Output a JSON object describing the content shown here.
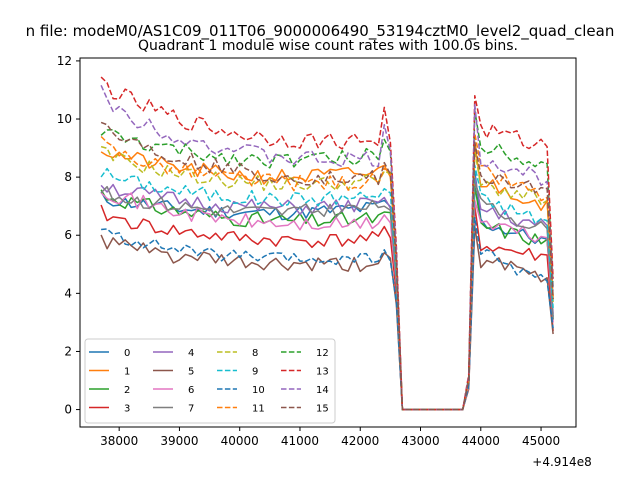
{
  "figure": {
    "suptitle": "n file: modeM0/AS1C09_011T06_9000006490_53194cztM0_level2_quad_clean",
    "title": "Quadrant 1 module wise count rates with 100.0s bins.",
    "offset_label": "+4.914e8"
  },
  "chart_data": {
    "type": "line",
    "title": "Quadrant 1 module wise count rates with 100.0s bins.",
    "xlabel": "",
    "ylabel": "",
    "xlim": [
      37350,
      45580
    ],
    "ylim": [
      -0.6,
      12.1
    ],
    "x_offset": 491400000,
    "x_ticks": [
      38000,
      39000,
      40000,
      41000,
      42000,
      43000,
      44000,
      45000
    ],
    "x_tick_labels": [
      "38000",
      "39000",
      "40000",
      "41000",
      "42000",
      "43000",
      "44000",
      "45000"
    ],
    "y_ticks": [
      0,
      2,
      4,
      6,
      8,
      10,
      12
    ],
    "y_tick_labels": [
      "0",
      "2",
      "4",
      "6",
      "8",
      "10",
      "12"
    ],
    "grid": false,
    "legend": {
      "placement": "lower-left",
      "columns": 4
    },
    "segments": {
      "pre": {
        "start": 37700,
        "end": 42500,
        "step": 100
      },
      "drop": [
        42600,
        42700
      ],
      "zero_end": 43700,
      "rise": [
        43800,
        43900
      ],
      "post": {
        "start": 43900,
        "end": 45200,
        "step": 100
      }
    },
    "series": [
      {
        "name": "0",
        "color": "#1f77b4",
        "dash": "solid",
        "pre_start": 7.3,
        "pre_end": 7.0,
        "spike": 7.2,
        "drop": [
          4.4,
          0
        ],
        "rise": [
          0.9,
          8.2
        ],
        "post_start": 6.5,
        "post_end": 5.7,
        "last": 3.2,
        "noise": 0.25,
        "seed": 11
      },
      {
        "name": "1",
        "color": "#ff7f0e",
        "dash": "solid",
        "pre_start": 9.0,
        "pre_end": 8.2,
        "spike": 8.4,
        "drop": [
          5.0,
          0
        ],
        "rise": [
          1.0,
          9.2
        ],
        "post_start": 7.9,
        "post_end": 7.0,
        "last": 3.8,
        "noise": 0.28,
        "seed": 21
      },
      {
        "name": "2",
        "color": "#2ca02c",
        "dash": "solid",
        "pre_start": 7.5,
        "pre_end": 6.6,
        "spike": 6.8,
        "drop": [
          4.2,
          0
        ],
        "rise": [
          0.9,
          7.7
        ],
        "post_start": 6.4,
        "post_end": 5.7,
        "last": 3.1,
        "noise": 0.27,
        "seed": 31
      },
      {
        "name": "3",
        "color": "#d62728",
        "dash": "solid",
        "pre_start": 6.8,
        "pre_end": 5.9,
        "spike": 6.3,
        "drop": [
          4.0,
          0
        ],
        "rise": [
          0.8,
          7.0
        ],
        "post_start": 5.7,
        "post_end": 5.2,
        "last": 2.7,
        "noise": 0.25,
        "seed": 41
      },
      {
        "name": "4",
        "color": "#9467bd",
        "dash": "solid",
        "pre_start": 7.8,
        "pre_end": 7.1,
        "spike": 7.3,
        "drop": [
          4.6,
          0
        ],
        "rise": [
          0.9,
          8.0
        ],
        "post_start": 6.9,
        "post_end": 6.2,
        "last": 3.3,
        "noise": 0.27,
        "seed": 51
      },
      {
        "name": "5",
        "color": "#8c564b",
        "dash": "solid",
        "pre_start": 5.9,
        "pre_end": 5.0,
        "spike": 5.4,
        "drop": [
          3.6,
          0
        ],
        "rise": [
          0.7,
          6.3
        ],
        "post_start": 5.2,
        "post_end": 4.4,
        "last": 2.6,
        "noise": 0.28,
        "seed": 61
      },
      {
        "name": "6",
        "color": "#e377c2",
        "dash": "solid",
        "pre_start": 7.7,
        "pre_end": 6.4,
        "spike": 6.7,
        "drop": [
          4.3,
          0
        ],
        "rise": [
          0.8,
          7.2
        ],
        "post_start": 6.5,
        "post_end": 5.8,
        "last": 3.0,
        "noise": 0.27,
        "seed": 71
      },
      {
        "name": "7",
        "color": "#7f7f7f",
        "dash": "solid",
        "pre_start": 7.5,
        "pre_end": 7.0,
        "spike": 7.0,
        "drop": [
          4.4,
          0
        ],
        "rise": [
          0.9,
          7.8
        ],
        "post_start": 7.1,
        "post_end": 6.1,
        "last": 3.1,
        "noise": 0.26,
        "seed": 81
      },
      {
        "name": "8",
        "color": "#bcbd22",
        "dash": "dashed",
        "pre_start": 8.9,
        "pre_end": 7.9,
        "spike": 8.2,
        "drop": [
          5.0,
          0
        ],
        "rise": [
          1.0,
          8.9
        ],
        "post_start": 7.8,
        "post_end": 7.1,
        "last": 3.7,
        "noise": 0.27,
        "seed": 91
      },
      {
        "name": "9",
        "color": "#17becf",
        "dash": "dashed",
        "pre_start": 8.2,
        "pre_end": 7.4,
        "spike": 7.6,
        "drop": [
          4.6,
          0
        ],
        "rise": [
          0.9,
          8.4
        ],
        "post_start": 7.3,
        "post_end": 6.4,
        "last": 3.5,
        "noise": 0.27,
        "seed": 101
      },
      {
        "name": "10",
        "color": "#1f77b4",
        "dash": "dashed",
        "pre_start": 6.2,
        "pre_end": 5.2,
        "spike": 5.5,
        "drop": [
          3.7,
          0
        ],
        "rise": [
          0.8,
          6.6
        ],
        "post_start": 5.5,
        "post_end": 4.3,
        "last": 2.8,
        "noise": 0.22,
        "seed": 111
      },
      {
        "name": "11",
        "color": "#ff7f0e",
        "dash": "dashed",
        "pre_start": 9.2,
        "pre_end": 7.9,
        "spike": 8.3,
        "drop": [
          5.1,
          0
        ],
        "rise": [
          1.0,
          9.5
        ],
        "post_start": 8.3,
        "post_end": 7.2,
        "last": 3.9,
        "noise": 0.28,
        "seed": 121
      },
      {
        "name": "12",
        "color": "#2ca02c",
        "dash": "dashed",
        "pre_start": 9.6,
        "pre_end": 8.8,
        "spike": 9.3,
        "drop": [
          5.2,
          0
        ],
        "rise": [
          1.1,
          10.3
        ],
        "post_start": 9.2,
        "post_end": 8.4,
        "last": 4.2,
        "noise": 0.28,
        "seed": 131
      },
      {
        "name": "13",
        "color": "#d62728",
        "dash": "dashed",
        "pre_start": 11.4,
        "pre_end": 9.3,
        "spike": 10.4,
        "drop": [
          5.6,
          0
        ],
        "rise": [
          1.2,
          10.8
        ],
        "post_start": 9.7,
        "post_end": 9.0,
        "last": 4.5,
        "noise": 0.3,
        "seed": 141
      },
      {
        "name": "14",
        "color": "#9467bd",
        "dash": "dashed",
        "pre_start": 10.9,
        "pre_end": 8.6,
        "spike": 9.8,
        "drop": [
          5.3,
          0
        ],
        "rise": [
          1.1,
          10.5
        ],
        "post_start": 8.7,
        "post_end": 7.8,
        "last": 4.1,
        "noise": 0.3,
        "seed": 151
      },
      {
        "name": "15",
        "color": "#8c564b",
        "dash": "dashed",
        "pre_start": 10.0,
        "pre_end": 8.0,
        "spike": 8.5,
        "drop": [
          5.0,
          0
        ],
        "rise": [
          1.0,
          9.2
        ],
        "post_start": 8.0,
        "post_end": 7.6,
        "last": 3.8,
        "noise": 0.28,
        "seed": 161
      }
    ]
  }
}
